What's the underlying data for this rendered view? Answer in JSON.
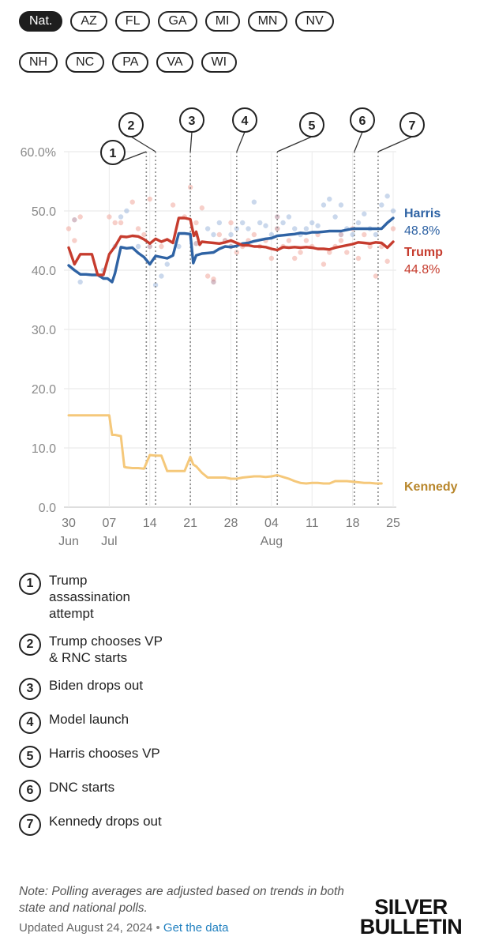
{
  "filters": {
    "row1": [
      "Nat.",
      "AZ",
      "FL",
      "GA",
      "MI",
      "MN",
      "NV"
    ],
    "row2": [
      "NH",
      "NC",
      "PA",
      "VA",
      "WI"
    ],
    "active": "Nat."
  },
  "chart_data": {
    "type": "line",
    "title": "",
    "xlabel": "",
    "ylabel": "",
    "ylim": [
      0,
      60
    ],
    "y_ticks": [
      "0.0",
      "10.0",
      "20.0",
      "30.0",
      "40.0",
      "50.0",
      "60.0%"
    ],
    "x_ticks": [
      {
        "day": 0,
        "label": "30",
        "sub": "Jun"
      },
      {
        "day": 7,
        "label": "07",
        "sub": "Jul"
      },
      {
        "day": 14,
        "label": "14",
        "sub": ""
      },
      {
        "day": 21,
        "label": "21",
        "sub": ""
      },
      {
        "day": 28,
        "label": "28",
        "sub": ""
      },
      {
        "day": 35,
        "label": "04",
        "sub": "Aug"
      },
      {
        "day": 42,
        "label": "11",
        "sub": ""
      },
      {
        "day": 49,
        "label": "18",
        "sub": ""
      },
      {
        "day": 56,
        "label": "25",
        "sub": ""
      }
    ],
    "xlim": [
      -1,
      57
    ],
    "series": [
      {
        "name": "Harris",
        "color": "#2f63a4",
        "final_label": "48.8%",
        "points": [
          [
            0,
            40.8
          ],
          [
            1,
            40
          ],
          [
            2,
            39.3
          ],
          [
            3,
            39.3
          ],
          [
            4,
            39.2
          ],
          [
            5,
            39.2
          ],
          [
            6,
            38.6
          ],
          [
            6.7,
            38.6
          ],
          [
            7.5,
            38
          ],
          [
            8,
            39.5
          ],
          [
            9,
            43.9
          ],
          [
            10,
            43.7
          ],
          [
            11,
            43.8
          ],
          [
            12,
            42.9
          ],
          [
            13,
            42.2
          ],
          [
            14,
            41
          ],
          [
            15,
            42.4
          ],
          [
            16,
            42.2
          ],
          [
            17,
            42
          ],
          [
            18,
            42.5
          ],
          [
            19,
            46.2
          ],
          [
            20,
            46.2
          ],
          [
            21,
            46.1
          ],
          [
            21.5,
            41.2
          ],
          [
            22,
            42.5
          ],
          [
            23,
            42.8
          ],
          [
            24,
            42.9
          ],
          [
            25,
            43
          ],
          [
            26,
            43.6
          ],
          [
            27,
            44
          ],
          [
            28,
            43.9
          ],
          [
            29,
            44.1
          ],
          [
            30,
            44.5
          ],
          [
            31,
            44.6
          ],
          [
            32,
            44.9
          ],
          [
            33,
            45.1
          ],
          [
            34,
            45.3
          ],
          [
            35,
            45.4
          ],
          [
            36,
            45.8
          ],
          [
            37,
            45.9
          ],
          [
            38,
            46
          ],
          [
            39,
            46.1
          ],
          [
            40,
            46.3
          ],
          [
            41,
            46.2
          ],
          [
            42,
            46.4
          ],
          [
            43,
            46.4
          ],
          [
            44,
            46.5
          ],
          [
            45,
            46.6
          ],
          [
            46,
            46.6
          ],
          [
            47,
            46.6
          ],
          [
            48,
            46.8
          ],
          [
            49,
            47
          ],
          [
            50,
            47
          ],
          [
            51,
            47
          ],
          [
            52,
            47
          ],
          [
            53,
            47
          ],
          [
            54,
            47
          ],
          [
            55,
            48
          ],
          [
            56,
            48.8
          ]
        ]
      },
      {
        "name": "Trump",
        "color": "#c63c2e",
        "final_label": "44.8%",
        "points": [
          [
            0,
            43.8
          ],
          [
            1,
            41
          ],
          [
            2,
            42.7
          ],
          [
            3,
            42.7
          ],
          [
            4,
            42.7
          ],
          [
            5,
            39.2
          ],
          [
            6,
            39.2
          ],
          [
            7,
            42.7
          ],
          [
            8,
            44
          ],
          [
            9,
            45.7
          ],
          [
            10,
            45.6
          ],
          [
            11,
            45.8
          ],
          [
            12,
            45.7
          ],
          [
            13,
            45.2
          ],
          [
            14,
            44.5
          ],
          [
            15,
            45.3
          ],
          [
            16,
            44.8
          ],
          [
            17,
            45.2
          ],
          [
            18,
            44.6
          ],
          [
            19,
            48.8
          ],
          [
            20,
            48.8
          ],
          [
            21,
            48.6
          ],
          [
            21.6,
            45.8
          ],
          [
            22,
            46.5
          ],
          [
            22.6,
            44.3
          ],
          [
            23,
            44.8
          ],
          [
            24,
            44.7
          ],
          [
            25,
            44.6
          ],
          [
            26,
            44.5
          ],
          [
            27,
            44.7
          ],
          [
            28,
            45
          ],
          [
            29,
            44.6
          ],
          [
            30,
            44.2
          ],
          [
            31,
            44.2
          ],
          [
            32,
            44
          ],
          [
            33,
            44
          ],
          [
            34,
            43.9
          ],
          [
            35,
            43.6
          ],
          [
            36,
            43.4
          ],
          [
            37,
            43.9
          ],
          [
            38,
            43.8
          ],
          [
            39,
            43.9
          ],
          [
            40,
            43.8
          ],
          [
            41,
            43.9
          ],
          [
            42,
            43.8
          ],
          [
            43,
            43.6
          ],
          [
            44,
            43.6
          ],
          [
            45,
            43.5
          ],
          [
            46,
            43.8
          ],
          [
            47,
            44
          ],
          [
            48,
            44.2
          ],
          [
            49,
            44.4
          ],
          [
            50,
            44.7
          ],
          [
            51,
            44.6
          ],
          [
            52,
            44.5
          ],
          [
            53,
            44.7
          ],
          [
            54,
            44.6
          ],
          [
            55,
            43.8
          ],
          [
            56,
            44.8
          ]
        ]
      },
      {
        "name": "Kennedy",
        "color": "#f5c87a",
        "label_color": "#b8862b",
        "final_label": "",
        "points": [
          [
            0,
            15.5
          ],
          [
            1,
            15.5
          ],
          [
            2,
            15.5
          ],
          [
            3,
            15.5
          ],
          [
            4,
            15.5
          ],
          [
            5,
            15.5
          ],
          [
            6,
            15.5
          ],
          [
            7,
            15.5
          ],
          [
            7.5,
            12.2
          ],
          [
            8,
            12.2
          ],
          [
            9,
            12
          ],
          [
            9.6,
            6.8
          ],
          [
            10,
            6.7
          ],
          [
            11,
            6.6
          ],
          [
            12,
            6.6
          ],
          [
            13,
            6.5
          ],
          [
            14,
            8.8
          ],
          [
            15,
            8.7
          ],
          [
            16,
            8.7
          ],
          [
            17,
            6.1
          ],
          [
            18,
            6.1
          ],
          [
            19,
            6.1
          ],
          [
            20,
            6.1
          ],
          [
            21,
            8.5
          ],
          [
            21.5,
            7.2
          ],
          [
            22,
            6.9
          ],
          [
            23,
            5.8
          ],
          [
            24,
            5
          ],
          [
            25,
            5
          ],
          [
            26,
            5
          ],
          [
            27,
            5
          ],
          [
            28,
            4.8
          ],
          [
            29,
            4.8
          ],
          [
            30,
            5
          ],
          [
            31,
            5.1
          ],
          [
            32,
            5.2
          ],
          [
            33,
            5.2
          ],
          [
            34,
            5.1
          ],
          [
            35,
            5.2
          ],
          [
            36,
            5.4
          ],
          [
            37,
            5.1
          ],
          [
            38,
            4.8
          ],
          [
            39,
            4.4
          ],
          [
            40,
            4.1
          ],
          [
            41,
            4
          ],
          [
            42,
            4.1
          ],
          [
            43,
            4.1
          ],
          [
            44,
            4
          ],
          [
            45,
            4
          ],
          [
            46,
            4.4
          ],
          [
            47,
            4.4
          ],
          [
            48,
            4.4
          ],
          [
            49,
            4.3
          ],
          [
            50,
            4.2
          ],
          [
            51,
            4.1
          ],
          [
            52,
            4.1
          ],
          [
            53,
            4
          ],
          [
            54,
            4
          ]
        ]
      }
    ],
    "polls": {
      "harris": [
        [
          2,
          38
        ],
        [
          6,
          40
        ],
        [
          8,
          44
        ],
        [
          9,
          49
        ],
        [
          10,
          50
        ],
        [
          12,
          44
        ],
        [
          15,
          37.5
        ],
        [
          16,
          39
        ],
        [
          17,
          41
        ],
        [
          19,
          44
        ],
        [
          22,
          46
        ],
        [
          24,
          47
        ],
        [
          25,
          46
        ],
        [
          26,
          48
        ],
        [
          27,
          45
        ],
        [
          28,
          46
        ],
        [
          29,
          47
        ],
        [
          30,
          48
        ],
        [
          31,
          47
        ],
        [
          32,
          51.5
        ],
        [
          33,
          48
        ],
        [
          34,
          47.5
        ],
        [
          35,
          46
        ],
        [
          36,
          47
        ],
        [
          37,
          48
        ],
        [
          38,
          49
        ],
        [
          39,
          47
        ],
        [
          40,
          46
        ],
        [
          41,
          47
        ],
        [
          42,
          48
        ],
        [
          43,
          47.5
        ],
        [
          44,
          51
        ],
        [
          45,
          52
        ],
        [
          46,
          49
        ],
        [
          47,
          51
        ],
        [
          48,
          47
        ],
        [
          49,
          46
        ],
        [
          50,
          48
        ],
        [
          51,
          49.5
        ],
        [
          52,
          47
        ],
        [
          53,
          46
        ],
        [
          54,
          51
        ],
        [
          55,
          52.5
        ],
        [
          56,
          50
        ]
      ],
      "trump": [
        [
          0,
          47
        ],
        [
          1,
          45
        ],
        [
          2,
          49
        ],
        [
          7,
          49
        ],
        [
          8,
          48
        ],
        [
          9,
          48
        ],
        [
          11,
          51.5
        ],
        [
          12,
          47
        ],
        [
          13,
          46
        ],
        [
          14,
          52
        ],
        [
          16,
          44
        ],
        [
          18,
          51
        ],
        [
          20,
          49
        ],
        [
          21,
          54
        ],
        [
          22,
          48
        ],
        [
          23,
          50.5
        ],
        [
          24,
          39
        ],
        [
          25,
          38.5
        ],
        [
          26,
          46
        ],
        [
          27,
          45
        ],
        [
          28,
          48
        ],
        [
          29,
          43
        ],
        [
          30,
          44
        ],
        [
          31,
          45
        ],
        [
          32,
          46
        ],
        [
          33,
          44
        ],
        [
          34,
          45
        ],
        [
          35,
          42
        ],
        [
          36,
          47
        ],
        [
          37,
          44
        ],
        [
          38,
          45
        ],
        [
          39,
          42
        ],
        [
          40,
          43
        ],
        [
          41,
          45
        ],
        [
          42,
          44
        ],
        [
          43,
          46
        ],
        [
          44,
          41
        ],
        [
          45,
          43
        ],
        [
          46,
          44
        ],
        [
          47,
          45
        ],
        [
          48,
          43
        ],
        [
          49,
          47
        ],
        [
          50,
          42
        ],
        [
          51,
          46
        ],
        [
          52,
          44
        ],
        [
          53,
          39
        ],
        [
          54,
          44
        ],
        [
          55,
          41.5
        ],
        [
          56,
          47
        ]
      ],
      "mixed": [
        [
          1,
          48.5
        ],
        [
          14,
          44
        ],
        [
          22,
          44.5
        ],
        [
          25,
          38
        ],
        [
          28,
          44
        ],
        [
          36,
          49
        ],
        [
          47,
          46
        ]
      ]
    },
    "events": [
      {
        "id": "1",
        "day": 13.4
      },
      {
        "id": "2",
        "day": 15
      },
      {
        "id": "3",
        "day": 21
      },
      {
        "id": "4",
        "day": 29
      },
      {
        "id": "5",
        "day": 36
      },
      {
        "id": "6",
        "day": 49.3
      },
      {
        "id": "7",
        "day": 53.4
      }
    ]
  },
  "events_legend": [
    {
      "id": "1",
      "text": "Trump assassination attempt"
    },
    {
      "id": "2",
      "text": "Trump chooses VP & RNC starts"
    },
    {
      "id": "3",
      "text": "Biden drops out"
    },
    {
      "id": "4",
      "text": "Model launch"
    },
    {
      "id": "5",
      "text": "Harris chooses VP"
    },
    {
      "id": "6",
      "text": "DNC starts"
    },
    {
      "id": "7",
      "text": "Kennedy drops out"
    }
  ],
  "footer": {
    "note": "Note: Polling averages are adjusted based on trends in both state and national polls.",
    "updated": "Updated August 24, 2024",
    "dot": "•",
    "link": "Get the data",
    "brand_line1": "SILVER",
    "brand_line2": "BULLETIN"
  }
}
